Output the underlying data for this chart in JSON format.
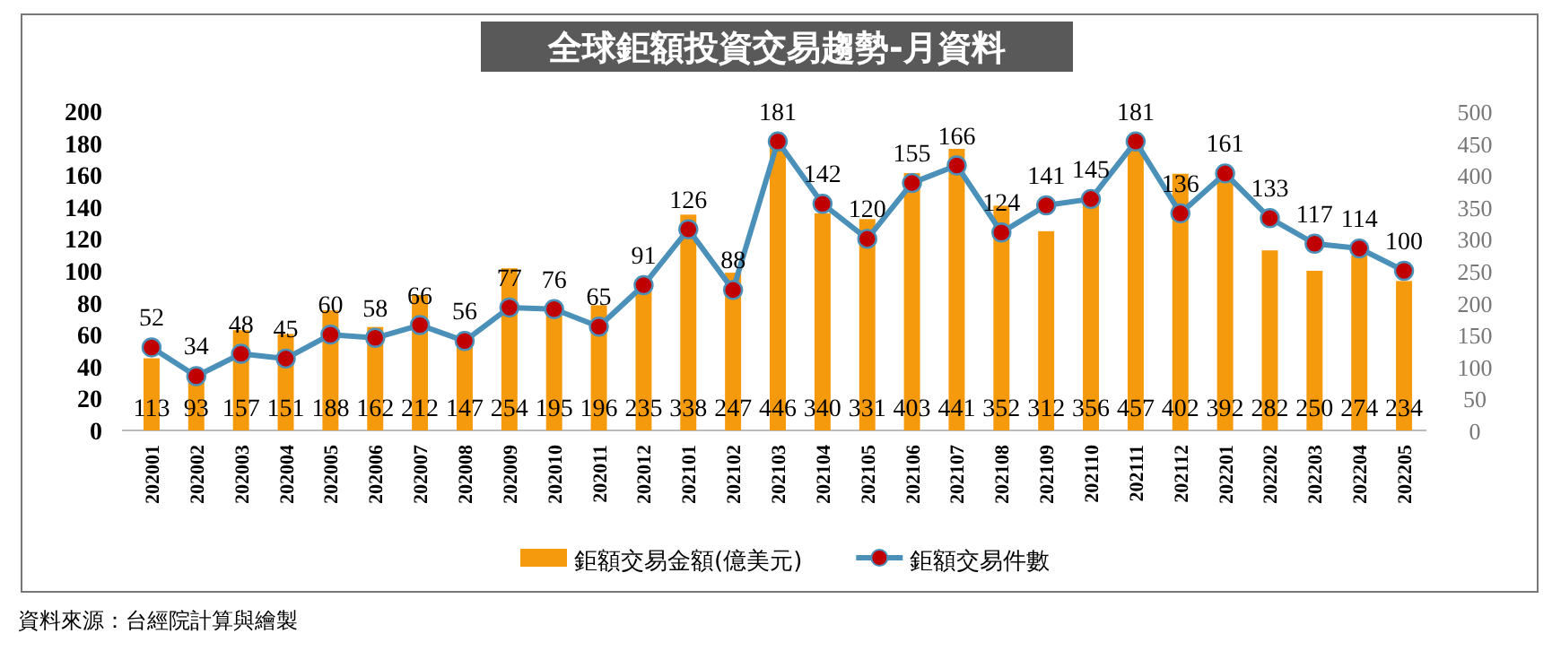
{
  "chart_data": {
    "type": "bar",
    "title": "全球鉅額投資交易趨勢-月資料",
    "categories": [
      "202001",
      "202002",
      "202003",
      "202004",
      "202005",
      "202006",
      "202007",
      "202008",
      "202009",
      "202010",
      "202011",
      "202012",
      "202101",
      "202102",
      "202103",
      "202104",
      "202105",
      "202106",
      "202107",
      "202108",
      "202109",
      "202110",
      "202111",
      "202112",
      "202201",
      "202202",
      "202203",
      "202204",
      "202205"
    ],
    "series": [
      {
        "name": "鉅額交易金額(億美元)",
        "axis": "y2",
        "color": "#f59a0c",
        "values": [
          113,
          93,
          157,
          151,
          188,
          162,
          212,
          147,
          254,
          195,
          196,
          235,
          338,
          247,
          446,
          340,
          331,
          403,
          441,
          352,
          312,
          356,
          457,
          402,
          392,
          282,
          250,
          274,
          234
        ]
      },
      {
        "name": "鉅額交易件數",
        "type": "line",
        "axis": "y",
        "color": "#4a90b8",
        "marker": "circle",
        "values": [
          52,
          34,
          48,
          45,
          60,
          58,
          66,
          56,
          77,
          76,
          65,
          91,
          126,
          88,
          181,
          142,
          120,
          155,
          166,
          124,
          141,
          145,
          181,
          136,
          161,
          133,
          117,
          114,
          100
        ]
      }
    ],
    "ylim": [
      0,
      200
    ],
    "yticks": [
      0,
      20,
      40,
      60,
      80,
      100,
      120,
      140,
      160,
      180,
      200
    ],
    "y2lim": [
      0,
      500
    ],
    "y2ticks": [
      0,
      50,
      100,
      150,
      200,
      250,
      300,
      350,
      400,
      450,
      500
    ],
    "data_labels": true,
    "grid": false,
    "legend": "bottom",
    "annotations": [
      "資料來源：台經院計算與繪製"
    ]
  }
}
